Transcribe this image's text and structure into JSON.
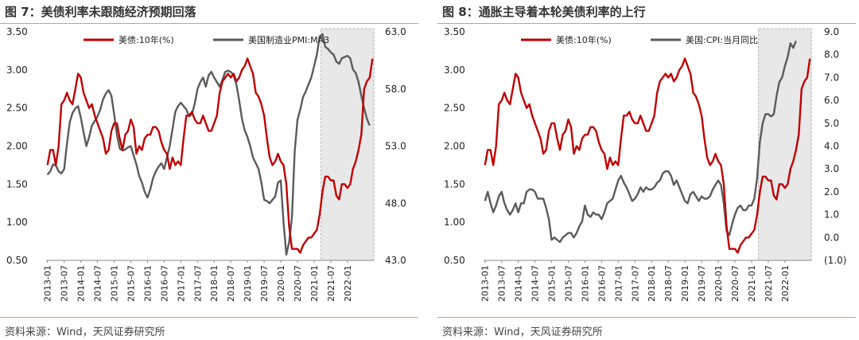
{
  "charts": [
    {
      "id": "left",
      "title": "图 7：美债利率未跟随经济预期回落",
      "source": "资料来源：Wind，天风证券研究所",
      "chart_data": {
        "type": "line",
        "x_ticks": [
          "2013-01",
          "2013-07",
          "2014-01",
          "2014-07",
          "2015-01",
          "2015-07",
          "2016-01",
          "2016-07",
          "2017-01",
          "2017-07",
          "2018-01",
          "2018-07",
          "2019-01",
          "2019-07",
          "2020-01",
          "2020-07",
          "2021-01",
          "2021-07",
          "2022-01"
        ],
        "shade_from": "2021-04",
        "shade_color": "#e8e8e8",
        "y_left": {
          "ticks": [
            "3.50",
            "3.00",
            "2.50",
            "2.00",
            "1.50",
            "1.00",
            "0.50"
          ],
          "ylim": [
            0.5,
            3.5
          ]
        },
        "y_right": {
          "ticks": [
            "63.0",
            "58.0",
            "53.0",
            "48.0",
            "43.0"
          ],
          "ylim": [
            43,
            63
          ]
        },
        "series": [
          {
            "name": "美债:10年(%)",
            "axis": "left",
            "color": "#c00000",
            "values": [
              1.75,
              1.95,
              1.95,
              1.75,
              2.0,
              2.55,
              2.6,
              2.7,
              2.6,
              2.55,
              2.75,
              2.95,
              2.9,
              2.7,
              2.6,
              2.5,
              2.55,
              2.4,
              2.3,
              2.2,
              2.1,
              1.9,
              1.95,
              2.2,
              2.3,
              2.3,
              2.1,
              1.95,
              2.15,
              2.2,
              2.35,
              2.25,
              1.9,
              2.0,
              1.95,
              2.1,
              2.15,
              2.15,
              2.25,
              2.25,
              2.2,
              2.05,
              1.95,
              1.9,
              1.7,
              1.85,
              1.75,
              1.8,
              1.75,
              2.1,
              2.4,
              2.4,
              2.45,
              2.35,
              2.3,
              2.3,
              2.4,
              2.3,
              2.2,
              2.2,
              2.3,
              2.4,
              2.7,
              2.85,
              2.9,
              2.95,
              2.9,
              2.95,
              2.85,
              2.9,
              3.0,
              3.05,
              3.15,
              3.05,
              2.95,
              2.7,
              2.65,
              2.55,
              2.4,
              2.1,
              1.85,
              1.75,
              1.8,
              1.9,
              1.8,
              1.75,
              1.5,
              0.95,
              0.65,
              0.65,
              0.65,
              0.6,
              0.7,
              0.75,
              0.8,
              0.8,
              0.85,
              0.9,
              1.1,
              1.4,
              1.6,
              1.6,
              1.55,
              1.55,
              1.35,
              1.3,
              1.5,
              1.5,
              1.45,
              1.5,
              1.7,
              1.8,
              1.95,
              2.15,
              2.75,
              2.85,
              2.9,
              3.15
            ]
          },
          {
            "name": "美国制造业PMI:MA3",
            "axis": "right",
            "color": "#5b5b5b",
            "values": [
              50.5,
              50.8,
              51.4,
              51.3,
              50.8,
              50.6,
              51.0,
              53.2,
              55.1,
              55.9,
              56.3,
              56.5,
              55.5,
              54.2,
              53.0,
              53.8,
              54.8,
              55.2,
              55.6,
              56.2,
              57.1,
              57.6,
              57.9,
              57.4,
              55.8,
              54.0,
              52.8,
              52.6,
              52.7,
              52.9,
              53.0,
              52.2,
              51.4,
              50.4,
              49.8,
              49.0,
              48.5,
              49.2,
              50.2,
              50.8,
              51.2,
              51.5,
              51.0,
              52.0,
              53.0,
              54.5,
              56.0,
              56.5,
              56.8,
              56.5,
              56.2,
              55.6,
              55.8,
              56.7,
              58.0,
              58.6,
              59.0,
              58.2,
              59.2,
              59.5,
              59.0,
              58.6,
              58.2,
              58.8,
              59.5,
              59.6,
              59.5,
              59.2,
              58.4,
              57.0,
              55.4,
              54.4,
              53.8,
              53.0,
              52.0,
              51.5,
              51.0,
              49.8,
              48.3,
              48.2,
              48.0,
              48.3,
              48.6,
              49.8,
              50.0,
              46.3,
              43.5,
              44.6,
              46.7,
              52.5,
              55.3,
              56.2,
              57.3,
              57.8,
              58.4,
              59.0,
              60.0,
              61.0,
              62.6,
              62.8,
              61.7,
              61.5,
              61.2,
              61.0,
              60.4,
              60.2,
              60.7,
              60.8,
              60.9,
              60.7,
              59.7,
              59.4,
              58.6,
              57.4,
              56.3,
              55.4,
              54.8
            ]
          }
        ]
      }
    },
    {
      "id": "right",
      "title": "图 8：通胀主导着本轮美债利率的上行",
      "source": "资料来源：Wind，天风证券研究所",
      "chart_data": {
        "type": "line",
        "x_ticks": [
          "2013-01",
          "2013-07",
          "2014-01",
          "2014-07",
          "2015-01",
          "2015-07",
          "2016-01",
          "2016-07",
          "2017-01",
          "2017-07",
          "2018-01",
          "2018-07",
          "2019-01",
          "2019-07",
          "2020-01",
          "2020-07",
          "2021-01",
          "2021-07",
          "2022-01"
        ],
        "shade_from": "2021-04",
        "shade_color": "#e8e8e8",
        "y_left": {
          "ticks": [
            "3.50",
            "3.00",
            "2.50",
            "2.00",
            "1.50",
            "1.00",
            "0.50"
          ],
          "ylim": [
            0.5,
            3.5
          ]
        },
        "y_right": {
          "ticks": [
            "9.0",
            "8.0",
            "7.0",
            "6.0",
            "5.0",
            "4.0",
            "3.0",
            "2.0",
            "1.0",
            "0.0",
            "(1.0)"
          ],
          "ylim": [
            -1,
            9
          ],
          "negative_color": "#c00000"
        },
        "series": [
          {
            "name": "美债:10年(%)",
            "axis": "left",
            "color": "#c00000",
            "values": [
              1.75,
              1.95,
              1.95,
              1.75,
              2.0,
              2.55,
              2.6,
              2.7,
              2.6,
              2.55,
              2.75,
              2.95,
              2.9,
              2.7,
              2.6,
              2.5,
              2.55,
              2.4,
              2.3,
              2.2,
              2.1,
              1.9,
              1.95,
              2.2,
              2.3,
              2.3,
              2.1,
              1.95,
              2.15,
              2.2,
              2.35,
              2.25,
              1.9,
              2.0,
              1.95,
              2.1,
              2.15,
              2.15,
              2.25,
              2.25,
              2.2,
              2.05,
              1.95,
              1.9,
              1.7,
              1.85,
              1.75,
              1.8,
              1.75,
              2.1,
              2.4,
              2.4,
              2.45,
              2.35,
              2.3,
              2.3,
              2.4,
              2.3,
              2.2,
              2.2,
              2.3,
              2.4,
              2.7,
              2.85,
              2.9,
              2.95,
              2.9,
              2.95,
              2.85,
              2.9,
              3.0,
              3.05,
              3.15,
              3.05,
              2.95,
              2.7,
              2.65,
              2.55,
              2.4,
              2.1,
              1.85,
              1.75,
              1.8,
              1.9,
              1.8,
              1.75,
              1.5,
              0.95,
              0.65,
              0.65,
              0.65,
              0.6,
              0.7,
              0.75,
              0.8,
              0.8,
              0.85,
              0.9,
              1.1,
              1.4,
              1.6,
              1.6,
              1.55,
              1.55,
              1.35,
              1.3,
              1.5,
              1.5,
              1.45,
              1.5,
              1.7,
              1.8,
              1.95,
              2.15,
              2.75,
              2.85,
              2.9,
              3.15
            ]
          },
          {
            "name": "美国:CPI:当月同比",
            "axis": "right",
            "color": "#5b5b5b",
            "values": [
              1.6,
              2.0,
              1.5,
              1.1,
              1.4,
              1.8,
              2.0,
              1.5,
              1.2,
              1.0,
              1.2,
              1.5,
              1.1,
              1.5,
              1.5,
              2.0,
              2.1,
              2.1,
              2.0,
              1.7,
              1.7,
              1.7,
              1.3,
              0.8,
              -0.1,
              0.0,
              -0.1,
              -0.2,
              0.0,
              0.1,
              0.2,
              0.2,
              0.0,
              0.2,
              0.5,
              0.7,
              1.4,
              1.0,
              0.9,
              1.1,
              1.0,
              1.0,
              0.8,
              1.1,
              1.5,
              1.6,
              1.7,
              2.1,
              2.5,
              2.7,
              2.4,
              2.2,
              1.9,
              1.6,
              1.7,
              1.9,
              2.2,
              2.0,
              2.2,
              2.1,
              2.1,
              2.2,
              2.4,
              2.5,
              2.8,
              2.9,
              2.9,
              2.7,
              2.3,
              2.5,
              2.2,
              1.9,
              1.6,
              1.5,
              1.9,
              2.0,
              1.8,
              1.6,
              1.8,
              1.7,
              1.7,
              1.8,
              2.1,
              2.3,
              2.5,
              2.3,
              1.5,
              0.3,
              0.1,
              0.6,
              1.0,
              1.3,
              1.4,
              1.2,
              1.2,
              1.4,
              1.4,
              1.7,
              2.6,
              4.2,
              5.0,
              5.4,
              5.4,
              5.3,
              5.4,
              6.2,
              6.8,
              7.0,
              7.5,
              7.9,
              8.5,
              8.3,
              8.6
            ]
          }
        ]
      }
    }
  ]
}
